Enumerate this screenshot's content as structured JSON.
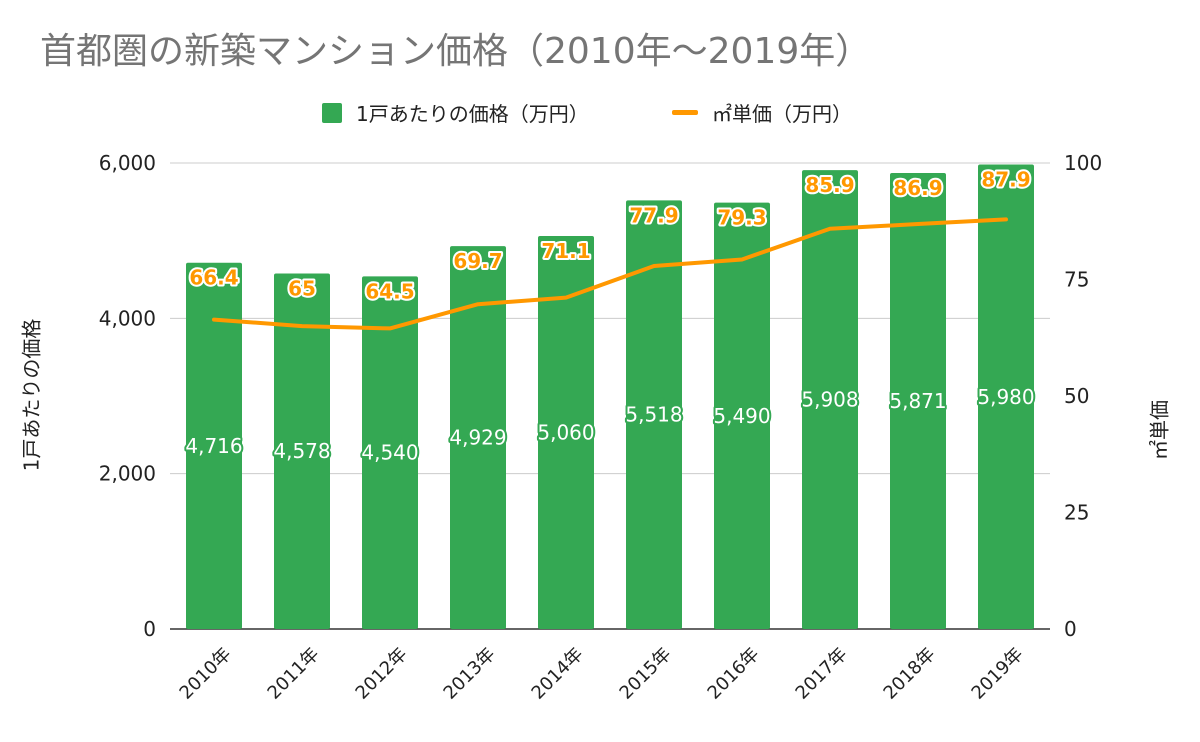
{
  "chart_data": {
    "type": "bar",
    "title": "首都圏の新築マンション価格（2010年〜2019年）",
    "categories": [
      "2010年",
      "2011年",
      "2012年",
      "2013年",
      "2014年",
      "2015年",
      "2016年",
      "2017年",
      "2018年",
      "2019年"
    ],
    "series": [
      {
        "name": "1戸あたりの価格（万円）",
        "type": "bar",
        "axis": "left",
        "color": "#34a853",
        "values": [
          4716,
          4578,
          4540,
          4929,
          5060,
          5518,
          5490,
          5908,
          5871,
          5980
        ],
        "labels": [
          "4,716",
          "4,578",
          "4,540",
          "4,929",
          "5,060",
          "5,518",
          "5,490",
          "5,908",
          "5,871",
          "5,980"
        ]
      },
      {
        "name": "㎡単価（万円）",
        "type": "line",
        "axis": "right",
        "color": "#ff9800",
        "values": [
          66.4,
          65,
          64.5,
          69.7,
          71.1,
          77.9,
          79.3,
          85.9,
          86.9,
          87.9
        ],
        "labels": [
          "66.4",
          "65",
          "64.5",
          "69.7",
          "71.1",
          "77.9",
          "79.3",
          "85.9",
          "86.9",
          "87.9"
        ]
      }
    ],
    "ylabel_left": "1戸あたりの価格",
    "ylabel_right": "㎡単価",
    "ylim_left": [
      0,
      6000
    ],
    "ylim_right": [
      0,
      100
    ],
    "yticks_left": [
      0,
      2000,
      4000,
      6000
    ],
    "yticks_left_labels": [
      "0",
      "2,000",
      "4,000",
      "6,000"
    ],
    "yticks_right": [
      0,
      25,
      50,
      75,
      100
    ],
    "yticks_right_labels": [
      "0",
      "25",
      "50",
      "75",
      "100"
    ],
    "grid": true,
    "legend_position": "top"
  }
}
